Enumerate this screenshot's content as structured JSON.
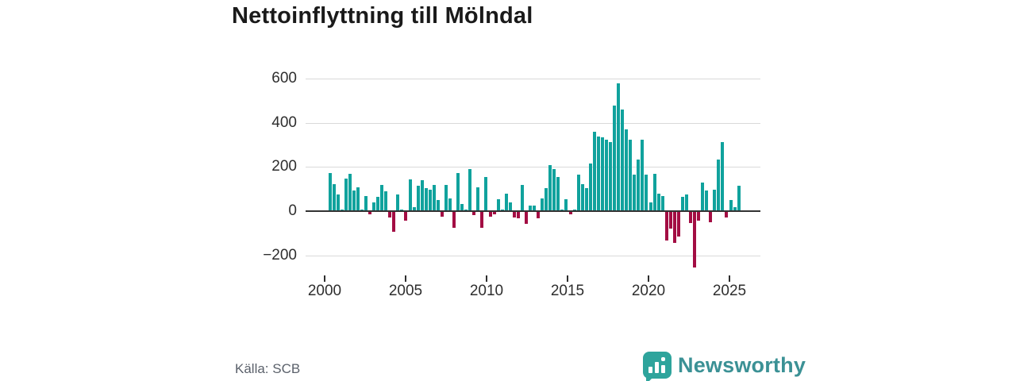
{
  "title": "Nettoinflyttning till Mölndal",
  "source": "Källa: SCB",
  "brand": {
    "name": "Newsworthy",
    "icon": "bar-chart-speech-bubble-icon"
  },
  "colors": {
    "positive_bar": "#10a29d",
    "negative_bar": "#a30d43",
    "brand_teal": "#2ea49c",
    "brand_text": "#3b9195",
    "grid": "#d9d9d9",
    "axis": "#333333",
    "tick_text": "#2e2e2e",
    "source_text": "#5b616b",
    "title_text": "#1a1a1a"
  },
  "chart_data": {
    "type": "bar",
    "title": "Nettoinflyttning till Mölndal",
    "xlabel": "",
    "ylabel": "",
    "frequency": "quarterly",
    "start_year": 2000,
    "start_quarter": 1,
    "end_year": 2025,
    "end_quarter": 3,
    "grid": true,
    "legend": false,
    "ylim": [
      -290,
      640
    ],
    "y_ticks": [
      600,
      400,
      200,
      0,
      -200
    ],
    "y_tick_labels": [
      "600",
      "400",
      "200",
      "0",
      "−200"
    ],
    "x_tick_years": [
      2000,
      2005,
      2010,
      2015,
      2020,
      2025
    ],
    "x_tick_labels": [
      "2000",
      "2005",
      "2010",
      "2015",
      "2020",
      "2025"
    ],
    "values": [
      170,
      120,
      73,
      5,
      145,
      165,
      90,
      105,
      5,
      65,
      -10,
      35,
      60,
      115,
      85,
      -25,
      -90,
      70,
      5,
      -40,
      140,
      15,
      110,
      135,
      100,
      95,
      115,
      45,
      -20,
      115,
      55,
      -70,
      170,
      30,
      5,
      185,
      -15,
      105,
      -70,
      150,
      -20,
      -12,
      50,
      5,
      75,
      35,
      -25,
      -30,
      115,
      -55,
      20,
      20,
      -30,
      55,
      100,
      205,
      185,
      150,
      5,
      50,
      -10,
      5,
      160,
      120,
      100,
      210,
      355,
      335,
      330,
      320,
      310,
      475,
      575,
      455,
      365,
      320,
      160,
      230,
      320,
      160,
      35,
      165,
      75,
      65,
      -130,
      -75,
      -140,
      -110,
      60,
      70,
      -50,
      -250,
      -40,
      125,
      90,
      -45,
      95,
      230,
      310,
      -25,
      45,
      15,
      110
    ]
  }
}
